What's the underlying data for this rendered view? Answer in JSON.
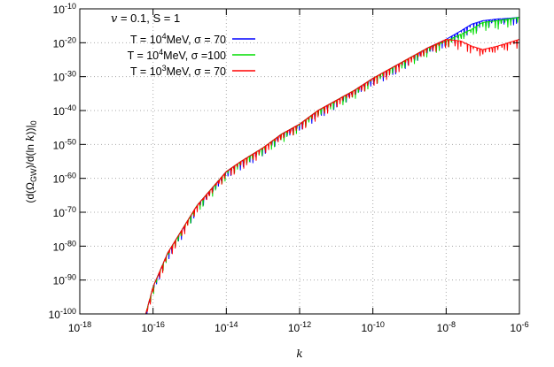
{
  "chart_data": {
    "type": "line",
    "title": "",
    "xlabel": "k",
    "ylabel": "(d(Ω_GW)/d(ln k))|_0",
    "xscale": "log",
    "yscale": "log",
    "xlim": [
      1e-18,
      1e-06
    ],
    "ylim": [
      1e-100,
      1e-10
    ],
    "grid": true,
    "legend_position": "top-left",
    "legend_title": {
      "var": "v",
      "text": " = 0.1, S = 1"
    },
    "x_ticks": [
      {
        "base": "10",
        "exp": "-18"
      },
      {
        "base": "10",
        "exp": "-16"
      },
      {
        "base": "10",
        "exp": "-14"
      },
      {
        "base": "10",
        "exp": "-12"
      },
      {
        "base": "10",
        "exp": "-10"
      },
      {
        "base": "10",
        "exp": "-8"
      },
      {
        "base": "10",
        "exp": "-6"
      }
    ],
    "y_ticks": [
      {
        "base": "10",
        "exp": "-100"
      },
      {
        "base": "10",
        "exp": "-90"
      },
      {
        "base": "10",
        "exp": "-80"
      },
      {
        "base": "10",
        "exp": "-70"
      },
      {
        "base": "10",
        "exp": "-60"
      },
      {
        "base": "10",
        "exp": "-50"
      },
      {
        "base": "10",
        "exp": "-40"
      },
      {
        "base": "10",
        "exp": "-30"
      },
      {
        "base": "10",
        "exp": "-20"
      },
      {
        "base": "10",
        "exp": "-10"
      }
    ],
    "series": [
      {
        "label_pre": "T = 10",
        "label_exp": "4",
        "label_post": "MeV, σ =  70",
        "color": "#0000ff",
        "points": [
          [
            -16.2,
            -100
          ],
          [
            -16.0,
            -92
          ],
          [
            -15.6,
            -82
          ],
          [
            -15.2,
            -75
          ],
          [
            -14.8,
            -68
          ],
          [
            -14.4,
            -63
          ],
          [
            -14.0,
            -58
          ],
          [
            -13.6,
            -55
          ],
          [
            -13.0,
            -51
          ],
          [
            -12.5,
            -47
          ],
          [
            -12.0,
            -44
          ],
          [
            -11.5,
            -40
          ],
          [
            -11.0,
            -37
          ],
          [
            -10.5,
            -34
          ],
          [
            -10.0,
            -30.5
          ],
          [
            -9.5,
            -27.5
          ],
          [
            -9.0,
            -24.5
          ],
          [
            -8.5,
            -21.5
          ],
          [
            -8.0,
            -19
          ],
          [
            -7.6,
            -16.5
          ],
          [
            -7.3,
            -14.5
          ],
          [
            -7.0,
            -13.5
          ],
          [
            -6.6,
            -13
          ],
          [
            -6.3,
            -12.8
          ],
          [
            -6.0,
            -12.5
          ]
        ]
      },
      {
        "label_pre": "T = 10",
        "label_exp": "4",
        "label_post": "MeV, σ =100",
        "color": "#00dd00",
        "points": [
          [
            -16.2,
            -100
          ],
          [
            -16.0,
            -92
          ],
          [
            -15.6,
            -82
          ],
          [
            -15.2,
            -75
          ],
          [
            -14.8,
            -68
          ],
          [
            -14.4,
            -63
          ],
          [
            -14.0,
            -58
          ],
          [
            -13.6,
            -55
          ],
          [
            -13.0,
            -51
          ],
          [
            -12.5,
            -47
          ],
          [
            -12.0,
            -44
          ],
          [
            -11.5,
            -40
          ],
          [
            -11.0,
            -37
          ],
          [
            -10.5,
            -34
          ],
          [
            -10.0,
            -30.5
          ],
          [
            -9.5,
            -27.5
          ],
          [
            -9.0,
            -24.5
          ],
          [
            -8.5,
            -21.5
          ],
          [
            -8.0,
            -19.5
          ],
          [
            -7.6,
            -17.5
          ],
          [
            -7.3,
            -16
          ],
          [
            -7.0,
            -14
          ],
          [
            -6.6,
            -13.5
          ],
          [
            -6.3,
            -13
          ],
          [
            -6.0,
            -12.5
          ]
        ]
      },
      {
        "label_pre": "T = 10",
        "label_exp": "3",
        "label_post": "MeV, σ =  70",
        "color": "#ff0000",
        "points": [
          [
            -16.2,
            -100
          ],
          [
            -16.0,
            -92
          ],
          [
            -15.6,
            -82
          ],
          [
            -15.2,
            -75
          ],
          [
            -14.8,
            -68
          ],
          [
            -14.4,
            -63
          ],
          [
            -14.0,
            -58
          ],
          [
            -13.6,
            -55
          ],
          [
            -13.0,
            -51
          ],
          [
            -12.5,
            -47
          ],
          [
            -12.0,
            -44
          ],
          [
            -11.5,
            -40
          ],
          [
            -11.0,
            -37
          ],
          [
            -10.5,
            -34
          ],
          [
            -10.0,
            -30.5
          ],
          [
            -9.5,
            -27.5
          ],
          [
            -9.0,
            -24.5
          ],
          [
            -8.5,
            -21.5
          ],
          [
            -8.0,
            -19
          ],
          [
            -7.6,
            -19.5
          ],
          [
            -7.3,
            -21
          ],
          [
            -7.0,
            -22
          ],
          [
            -6.6,
            -21
          ],
          [
            -6.3,
            -20
          ],
          [
            -6.0,
            -19
          ]
        ]
      }
    ]
  }
}
